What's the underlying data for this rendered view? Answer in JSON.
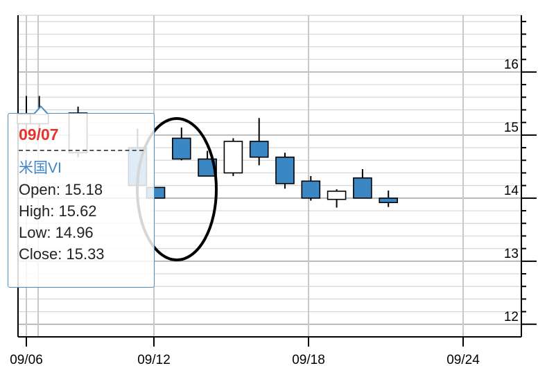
{
  "chart_data": {
    "type": "candlestick",
    "series_name": "米国VI",
    "x_tick_labels": [
      "09/06",
      "09/12",
      "09/18",
      "09/24"
    ],
    "y_tick_labels": [
      "12",
      "13",
      "14",
      "15",
      "16"
    ],
    "ylim": [
      11.8,
      16.9
    ],
    "grid": true,
    "candles": [
      {
        "date": "09/06",
        "open": 15.18,
        "high": 15.62,
        "low": 14.96,
        "close": 15.33
      },
      {
        "date": "09/07",
        "open": 15.18,
        "high": 15.62,
        "low": 14.96,
        "close": 15.33
      },
      {
        "date": "09/08",
        "open": 14.72,
        "high": 15.45,
        "low": 14.65,
        "close": 15.35
      },
      {
        "date": "09/11",
        "open": 14.8,
        "high": 15.1,
        "low": 14.2,
        "close": 14.2
      },
      {
        "date": "09/12",
        "open": 14.17,
        "high": 14.17,
        "low": 14.0,
        "close": 14.0
      },
      {
        "date": "09/13",
        "open": 14.95,
        "high": 15.12,
        "low": 14.6,
        "close": 14.62
      },
      {
        "date": "09/14",
        "open": 14.62,
        "high": 14.75,
        "low": 14.35,
        "close": 14.35
      },
      {
        "date": "09/15",
        "open": 14.4,
        "high": 14.95,
        "low": 14.35,
        "close": 14.9
      },
      {
        "date": "09/18",
        "open": 14.9,
        "high": 15.27,
        "low": 14.52,
        "close": 14.65
      },
      {
        "date": "09/19",
        "open": 14.65,
        "high": 14.72,
        "low": 14.15,
        "close": 14.23
      },
      {
        "date": "09/20",
        "open": 14.27,
        "high": 14.35,
        "low": 13.96,
        "close": 14.0
      },
      {
        "date": "09/21",
        "open": 13.98,
        "high": 14.14,
        "low": 13.85,
        "close": 14.11
      },
      {
        "date": "09/22",
        "open": 14.32,
        "high": 14.46,
        "low": 14.0,
        "close": 14.0
      },
      {
        "date": "09/25",
        "open": 14.0,
        "high": 14.12,
        "low": 13.86,
        "close": 13.93
      }
    ]
  },
  "tooltip": {
    "date": "09/07",
    "series": "米国VI",
    "open_label": "Open:",
    "open_value": "15.18",
    "high_label": "High:",
    "high_value": "15.62",
    "low_label": "Low:",
    "low_value": "14.96",
    "close_label": "Close:",
    "close_value": "15.33"
  },
  "colors": {
    "down_fill": "#3a87c4",
    "up_fill": "#ffffff",
    "candle_border": "#000000",
    "tooltip_border": "#4a8fc8",
    "tooltip_date": "#e8332d",
    "tooltip_series": "#3d85c6",
    "annotation": "#000000"
  }
}
